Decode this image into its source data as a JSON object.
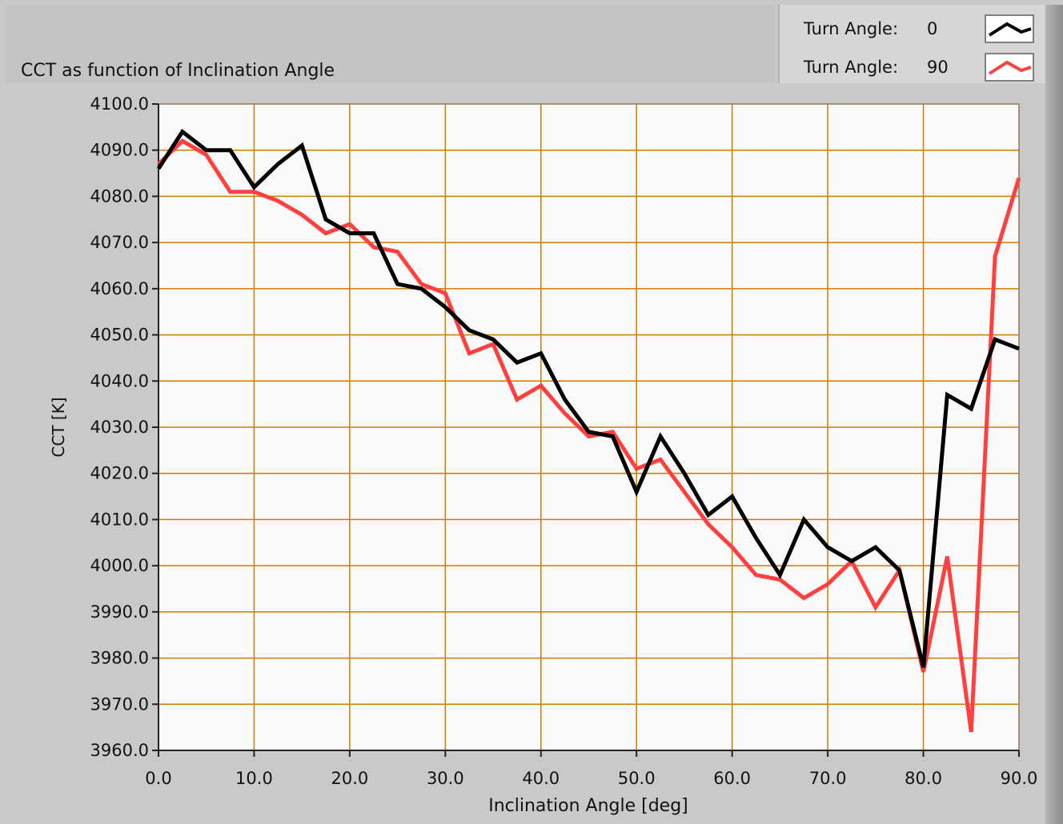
{
  "chart_data": {
    "type": "line",
    "title": "CCT as function of Inclination Angle",
    "xlabel": "Inclination Angle [deg]",
    "ylabel": "CCT [K]",
    "xlim": [
      0,
      90
    ],
    "ylim": [
      3960,
      4100
    ],
    "xticks": [
      "0.0",
      "10.0",
      "20.0",
      "30.0",
      "40.0",
      "50.0",
      "60.0",
      "70.0",
      "80.0",
      "90.0"
    ],
    "yticks": [
      "4100.0",
      "4090.0",
      "4080.0",
      "4070.0",
      "4060.0",
      "4050.0",
      "4040.0",
      "4030.0",
      "4020.0",
      "4010.0",
      "4000.0",
      "3990.0",
      "3980.0",
      "3970.0",
      "3960.0"
    ],
    "grid": true,
    "legend_position": "top-right",
    "x": [
      0,
      2.5,
      5,
      7.5,
      10,
      12.5,
      15,
      17.5,
      20,
      22.5,
      25,
      27.5,
      30,
      32.5,
      35,
      37.5,
      40,
      42.5,
      45,
      47.5,
      50,
      52.5,
      55,
      57.5,
      60,
      62.5,
      65,
      67.5,
      70,
      72.5,
      75,
      77.5,
      80,
      82.5,
      85,
      87.5,
      90
    ],
    "series": [
      {
        "name": "Turn Angle:",
        "value_label": "0",
        "color": "#000000",
        "values": [
          4086,
          4094,
          4090,
          4090,
          4082,
          4087,
          4091,
          4075,
          4072,
          4072,
          4061,
          4060,
          4056,
          4051,
          4049,
          4044,
          4046,
          4036,
          4029,
          4028,
          4016,
          4028,
          4020,
          4011,
          4015,
          4006,
          3998,
          4010,
          4004,
          4001,
          4004,
          3999,
          3978,
          4037,
          4034,
          4049,
          4047
        ]
      },
      {
        "name": "Turn Angle:",
        "value_label": "90",
        "color": "#ff4040",
        "values": [
          4087,
          4092,
          4089,
          4081,
          4081,
          4079,
          4076,
          4072,
          4074,
          4069,
          4068,
          4061,
          4059,
          4046,
          4048,
          4036,
          4039,
          4033,
          4028,
          4029,
          4021,
          4023,
          4016,
          4009,
          4004,
          3998,
          3997,
          3993,
          3996,
          4001,
          3991,
          3999,
          3977,
          4002,
          3964,
          4067,
          4084
        ]
      }
    ]
  }
}
